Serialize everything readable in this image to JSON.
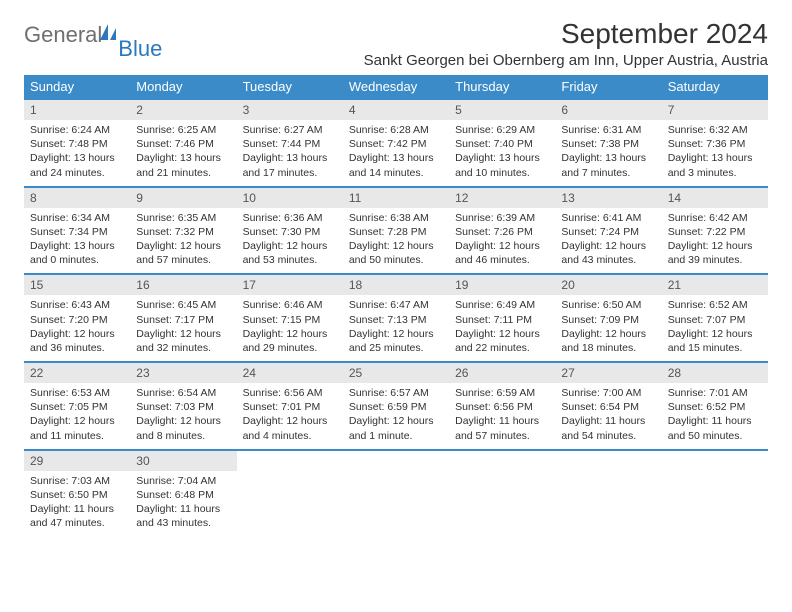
{
  "logo": {
    "text1": "General",
    "text2": "Blue"
  },
  "title": "September 2024",
  "location": "Sankt Georgen bei Obernberg am Inn, Upper Austria, Austria",
  "colors": {
    "header_bg": "#3b8bc8",
    "header_fg": "#ffffff",
    "daynum_bg": "#e8e8e8",
    "border": "#3b8bc8",
    "logo_gray": "#6f6f6f",
    "logo_blue": "#2b78bf"
  },
  "weekdays": [
    "Sunday",
    "Monday",
    "Tuesday",
    "Wednesday",
    "Thursday",
    "Friday",
    "Saturday"
  ],
  "weeks": [
    [
      {
        "num": "1",
        "sunrise": "6:24 AM",
        "sunset": "7:48 PM",
        "daylight": "13 hours and 24 minutes."
      },
      {
        "num": "2",
        "sunrise": "6:25 AM",
        "sunset": "7:46 PM",
        "daylight": "13 hours and 21 minutes."
      },
      {
        "num": "3",
        "sunrise": "6:27 AM",
        "sunset": "7:44 PM",
        "daylight": "13 hours and 17 minutes."
      },
      {
        "num": "4",
        "sunrise": "6:28 AM",
        "sunset": "7:42 PM",
        "daylight": "13 hours and 14 minutes."
      },
      {
        "num": "5",
        "sunrise": "6:29 AM",
        "sunset": "7:40 PM",
        "daylight": "13 hours and 10 minutes."
      },
      {
        "num": "6",
        "sunrise": "6:31 AM",
        "sunset": "7:38 PM",
        "daylight": "13 hours and 7 minutes."
      },
      {
        "num": "7",
        "sunrise": "6:32 AM",
        "sunset": "7:36 PM",
        "daylight": "13 hours and 3 minutes."
      }
    ],
    [
      {
        "num": "8",
        "sunrise": "6:34 AM",
        "sunset": "7:34 PM",
        "daylight": "13 hours and 0 minutes."
      },
      {
        "num": "9",
        "sunrise": "6:35 AM",
        "sunset": "7:32 PM",
        "daylight": "12 hours and 57 minutes."
      },
      {
        "num": "10",
        "sunrise": "6:36 AM",
        "sunset": "7:30 PM",
        "daylight": "12 hours and 53 minutes."
      },
      {
        "num": "11",
        "sunrise": "6:38 AM",
        "sunset": "7:28 PM",
        "daylight": "12 hours and 50 minutes."
      },
      {
        "num": "12",
        "sunrise": "6:39 AM",
        "sunset": "7:26 PM",
        "daylight": "12 hours and 46 minutes."
      },
      {
        "num": "13",
        "sunrise": "6:41 AM",
        "sunset": "7:24 PM",
        "daylight": "12 hours and 43 minutes."
      },
      {
        "num": "14",
        "sunrise": "6:42 AM",
        "sunset": "7:22 PM",
        "daylight": "12 hours and 39 minutes."
      }
    ],
    [
      {
        "num": "15",
        "sunrise": "6:43 AM",
        "sunset": "7:20 PM",
        "daylight": "12 hours and 36 minutes."
      },
      {
        "num": "16",
        "sunrise": "6:45 AM",
        "sunset": "7:17 PM",
        "daylight": "12 hours and 32 minutes."
      },
      {
        "num": "17",
        "sunrise": "6:46 AM",
        "sunset": "7:15 PM",
        "daylight": "12 hours and 29 minutes."
      },
      {
        "num": "18",
        "sunrise": "6:47 AM",
        "sunset": "7:13 PM",
        "daylight": "12 hours and 25 minutes."
      },
      {
        "num": "19",
        "sunrise": "6:49 AM",
        "sunset": "7:11 PM",
        "daylight": "12 hours and 22 minutes."
      },
      {
        "num": "20",
        "sunrise": "6:50 AM",
        "sunset": "7:09 PM",
        "daylight": "12 hours and 18 minutes."
      },
      {
        "num": "21",
        "sunrise": "6:52 AM",
        "sunset": "7:07 PM",
        "daylight": "12 hours and 15 minutes."
      }
    ],
    [
      {
        "num": "22",
        "sunrise": "6:53 AM",
        "sunset": "7:05 PM",
        "daylight": "12 hours and 11 minutes."
      },
      {
        "num": "23",
        "sunrise": "6:54 AM",
        "sunset": "7:03 PM",
        "daylight": "12 hours and 8 minutes."
      },
      {
        "num": "24",
        "sunrise": "6:56 AM",
        "sunset": "7:01 PM",
        "daylight": "12 hours and 4 minutes."
      },
      {
        "num": "25",
        "sunrise": "6:57 AM",
        "sunset": "6:59 PM",
        "daylight": "12 hours and 1 minute."
      },
      {
        "num": "26",
        "sunrise": "6:59 AM",
        "sunset": "6:56 PM",
        "daylight": "11 hours and 57 minutes."
      },
      {
        "num": "27",
        "sunrise": "7:00 AM",
        "sunset": "6:54 PM",
        "daylight": "11 hours and 54 minutes."
      },
      {
        "num": "28",
        "sunrise": "7:01 AM",
        "sunset": "6:52 PM",
        "daylight": "11 hours and 50 minutes."
      }
    ],
    [
      {
        "num": "29",
        "sunrise": "7:03 AM",
        "sunset": "6:50 PM",
        "daylight": "11 hours and 47 minutes."
      },
      {
        "num": "30",
        "sunrise": "7:04 AM",
        "sunset": "6:48 PM",
        "daylight": "11 hours and 43 minutes."
      },
      null,
      null,
      null,
      null,
      null
    ]
  ],
  "labels": {
    "sunrise": "Sunrise:",
    "sunset": "Sunset:",
    "daylight": "Daylight:"
  }
}
